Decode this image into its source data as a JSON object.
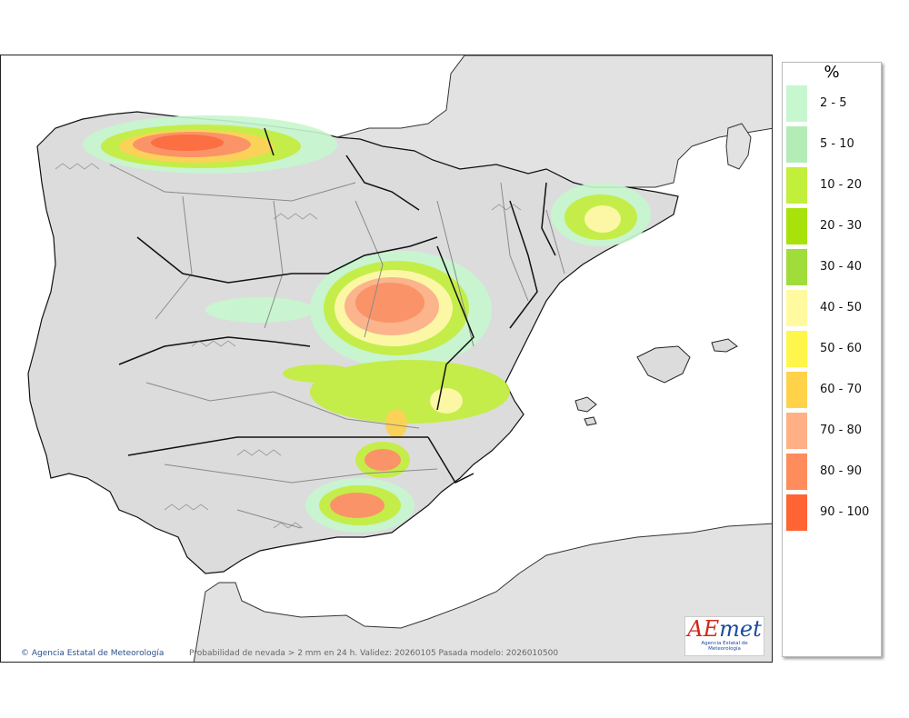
{
  "legend": {
    "unit": "%",
    "items": [
      {
        "label": "2 - 5",
        "color": "#c6f7cf"
      },
      {
        "label": "5 - 10",
        "color": "#b4ecb6"
      },
      {
        "label": "10 - 20",
        "color": "#c2ef3a"
      },
      {
        "label": "20 - 30",
        "color": "#a8e20a"
      },
      {
        "label": "30 - 40",
        "color": "#a0dc3a"
      },
      {
        "label": "40 - 50",
        "color": "#fffaa0"
      },
      {
        "label": "50 - 60",
        "color": "#fff64c"
      },
      {
        "label": "60 - 70",
        "color": "#ffd24a"
      },
      {
        "label": "70 - 80",
        "color": "#ffb084"
      },
      {
        "label": "80 - 90",
        "color": "#ff8c5c"
      },
      {
        "label": "90 - 100",
        "color": "#ff6432"
      }
    ]
  },
  "footer": {
    "agency": "Agencia Estatal de Meteorología",
    "caption": "Probabilidad de nevada > 2 mm en 24 h. Validez: 20260105 Pasada modelo: 2026010500"
  },
  "logo": {
    "text_a": "AE",
    "text_b": "met",
    "subtitle": "Agencia Estatal de Meteorología"
  },
  "colors": {
    "sea": "#ffffff",
    "land": "#e2e2e2",
    "terrain": "#cfcfcf",
    "border": "#222222",
    "province_border": "#8a8a8a"
  }
}
